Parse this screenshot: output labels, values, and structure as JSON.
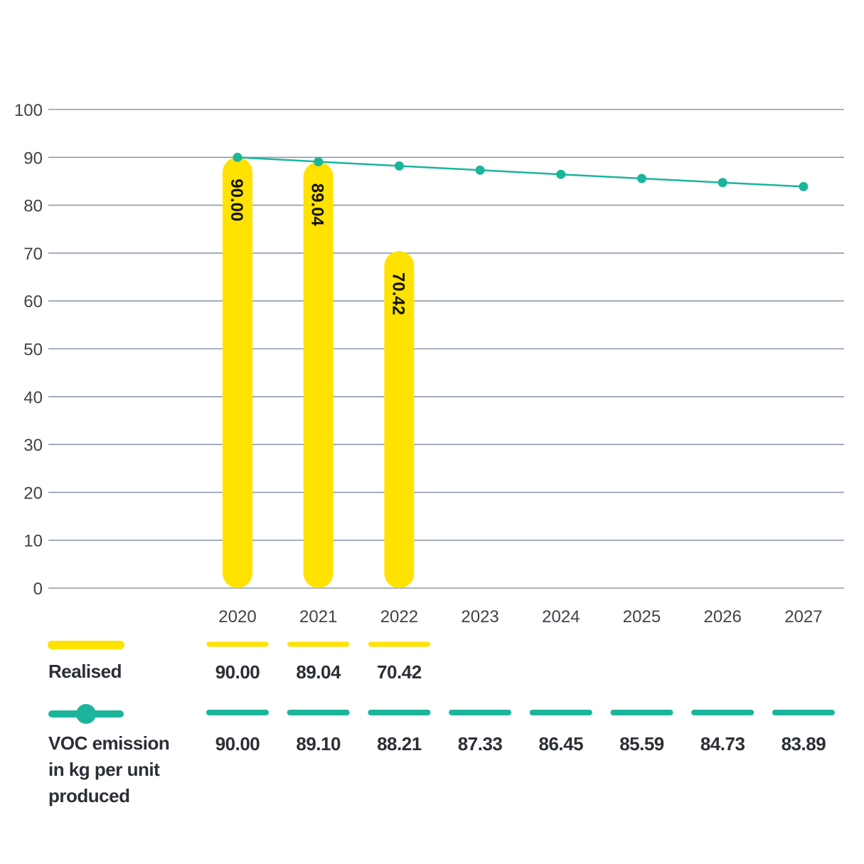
{
  "colors": {
    "realised": "#FFE200",
    "target": "#1BB59C",
    "grid": "#8E9AAB",
    "text": "#2b2f36"
  },
  "chart_data": {
    "type": "bar",
    "categories": [
      "2020",
      "2021",
      "2022",
      "2023",
      "2024",
      "2025",
      "2026",
      "2027"
    ],
    "ylim": [
      0,
      100
    ],
    "yticks": [
      "0",
      "10",
      "20",
      "30",
      "40",
      "50",
      "60",
      "70",
      "80",
      "90",
      "100"
    ],
    "grid": true,
    "series": [
      {
        "name": "Realised",
        "type": "bar",
        "values": [
          90.0,
          89.04,
          70.42,
          null,
          null,
          null,
          null,
          null
        ],
        "labels": [
          "90.00",
          "89.04",
          "70.42",
          "",
          "",
          "",
          "",
          ""
        ]
      },
      {
        "name": "VOC emission in kg per unit produced",
        "type": "line",
        "values": [
          90.0,
          89.1,
          88.21,
          87.33,
          86.45,
          85.59,
          84.73,
          83.89
        ],
        "labels": [
          "90.00",
          "89.10",
          "88.21",
          "87.33",
          "86.45",
          "85.59",
          "84.73",
          "83.89"
        ]
      }
    ]
  },
  "legend": {
    "realised_label": "Realised",
    "voc_label_lines": [
      "VOC emission",
      "in kg per unit",
      "produced"
    ]
  }
}
